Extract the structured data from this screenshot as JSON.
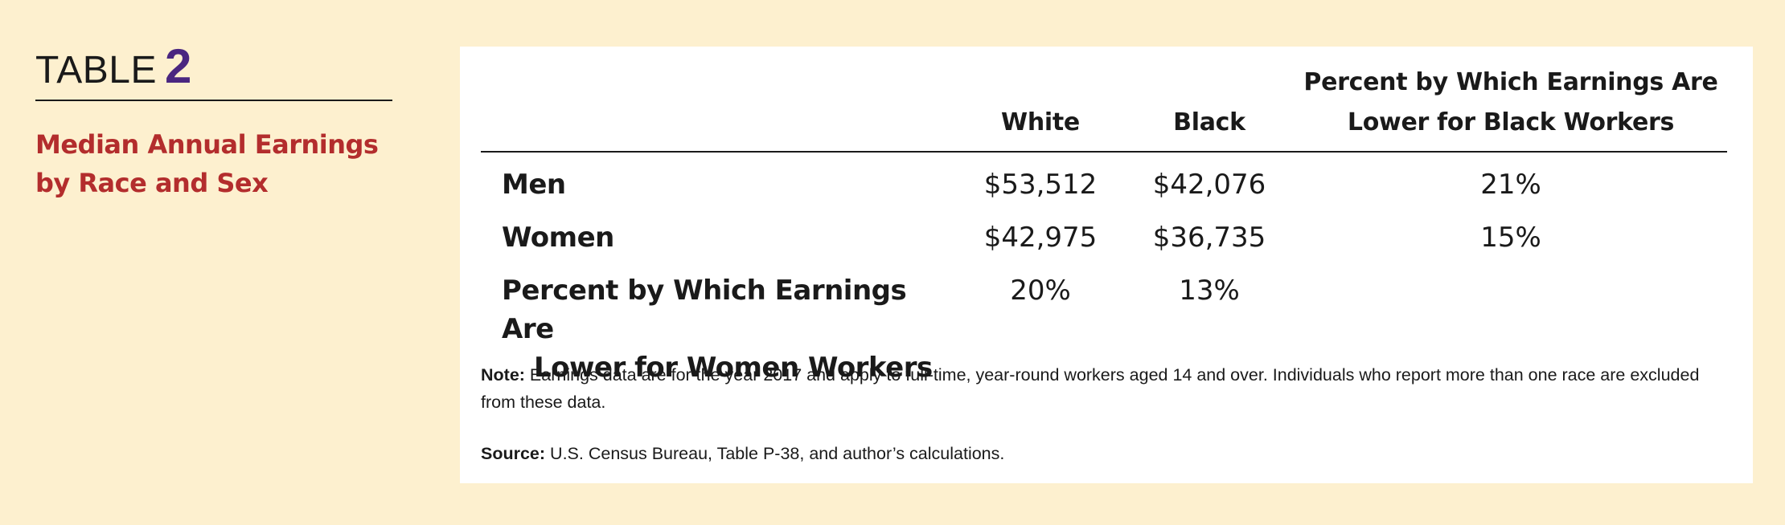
{
  "heading": {
    "word": "TABLE",
    "number": "2"
  },
  "title": "Median Annual Earnings by Race and Sex",
  "table": {
    "columns": [
      "",
      "White",
      "Black",
      "Percent by Which Earnings Are Lower for Black Workers"
    ],
    "rows": [
      {
        "label": "Men",
        "white": "$53,512",
        "black": "$42,076",
        "pct": "21%"
      },
      {
        "label": "Women",
        "white": "$42,975",
        "black": "$36,735",
        "pct": "15%"
      },
      {
        "label_line1": "Percent by Which Earnings Are",
        "label_line2": "Lower for Women Workers",
        "white": "20%",
        "black": "13%",
        "pct": ""
      }
    ]
  },
  "note": {
    "label": "Note:",
    "text": "Earnings data are for the year 2017 and apply to full-time, year-round workers aged 14 and over. Individuals who report more than one race are excluded from these data."
  },
  "source": {
    "label": "Source:",
    "text": "U.S. Census Bureau, Table P-38, and author’s calculations."
  },
  "colors": {
    "background": "#fdf0cf",
    "panel": "#ffffff",
    "title": "#b32d2d",
    "table_number": "#4a2680"
  }
}
